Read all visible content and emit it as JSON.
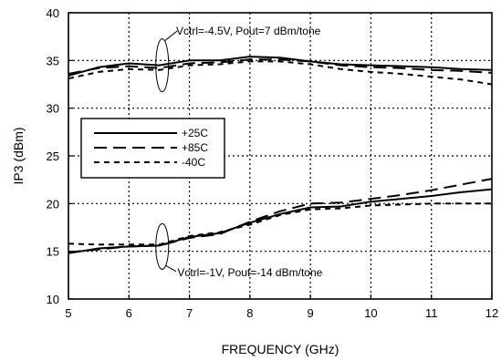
{
  "chart_data": {
    "type": "line",
    "title": "",
    "xlabel": "FREQUENCY (GHz)",
    "ylabel": "IP3 (dBm)",
    "xlim": [
      5,
      12
    ],
    "ylim": [
      10,
      40
    ],
    "xticks": [
      5,
      6,
      7,
      8,
      9,
      10,
      11,
      12
    ],
    "yticks": [
      10,
      15,
      20,
      25,
      30,
      35,
      40
    ],
    "grid": true,
    "legend_position": "left",
    "legend": [
      "+25C",
      "+85C",
      "-40C"
    ],
    "annotations": [
      {
        "text": "Vctrl=-4.5V,  Pout=7 dBm/tone"
      },
      {
        "text": "Vctrl=-1V,  Pout=-14 dBm/tone"
      }
    ],
    "series": [
      {
        "name": "+25C",
        "group": "high",
        "style": "solid",
        "x": [
          5,
          5.5,
          6,
          6.5,
          7,
          7.5,
          8,
          8.5,
          9,
          9.5,
          10,
          10.5,
          11,
          11.5,
          12
        ],
        "y": [
          33.4,
          34.3,
          34.7,
          34.5,
          35.0,
          35.0,
          35.4,
          35.3,
          34.9,
          34.6,
          34.5,
          34.4,
          34.3,
          34.1,
          34.0
        ]
      },
      {
        "name": "+85C",
        "group": "high",
        "style": "longdash",
        "x": [
          5,
          5.5,
          6,
          6.5,
          7,
          7.5,
          8,
          8.5,
          9,
          9.5,
          10,
          10.5,
          11,
          11.5,
          12
        ],
        "y": [
          33.6,
          34.2,
          34.4,
          34.2,
          34.7,
          34.8,
          35.1,
          35.1,
          34.9,
          34.5,
          34.3,
          34.2,
          34.0,
          33.9,
          33.7
        ]
      },
      {
        "name": "-40C",
        "group": "high",
        "style": "shortdash",
        "x": [
          5,
          5.5,
          6,
          6.5,
          7,
          7.5,
          8,
          8.5,
          9,
          9.5,
          10,
          10.5,
          11,
          11.5,
          12
        ],
        "y": [
          33.1,
          33.8,
          34.1,
          34.0,
          34.5,
          34.6,
          34.9,
          34.9,
          34.6,
          34.1,
          33.8,
          33.6,
          33.3,
          33.0,
          32.5
        ]
      },
      {
        "name": "+25C",
        "group": "low",
        "style": "solid",
        "x": [
          5,
          5.5,
          6,
          6.5,
          7,
          7.5,
          8,
          8.5,
          9,
          9.5,
          10,
          10.5,
          11,
          11.5,
          12
        ],
        "y": [
          14.8,
          15.3,
          15.5,
          15.6,
          16.5,
          16.9,
          18.0,
          18.9,
          19.6,
          19.7,
          20.2,
          20.5,
          20.8,
          21.2,
          21.5
        ]
      },
      {
        "name": "+85C",
        "group": "low",
        "style": "longdash",
        "x": [
          5,
          5.5,
          6,
          6.5,
          7,
          7.5,
          8,
          8.5,
          9,
          9.5,
          10,
          10.5,
          11,
          11.5,
          12
        ],
        "y": [
          14.9,
          15.2,
          15.5,
          15.6,
          16.4,
          16.8,
          18.1,
          19.2,
          20.0,
          20.1,
          20.5,
          20.9,
          21.4,
          22.0,
          22.6
        ]
      },
      {
        "name": "-40C",
        "group": "low",
        "style": "shortdash",
        "x": [
          5,
          5.5,
          6,
          6.5,
          7,
          7.5,
          8,
          8.5,
          9,
          9.5,
          10,
          10.5,
          11,
          11.5,
          12
        ],
        "y": [
          15.8,
          15.7,
          15.7,
          15.7,
          16.6,
          17.0,
          17.8,
          18.8,
          19.4,
          19.5,
          19.8,
          19.9,
          20.0,
          20.0,
          20.0
        ]
      }
    ]
  }
}
